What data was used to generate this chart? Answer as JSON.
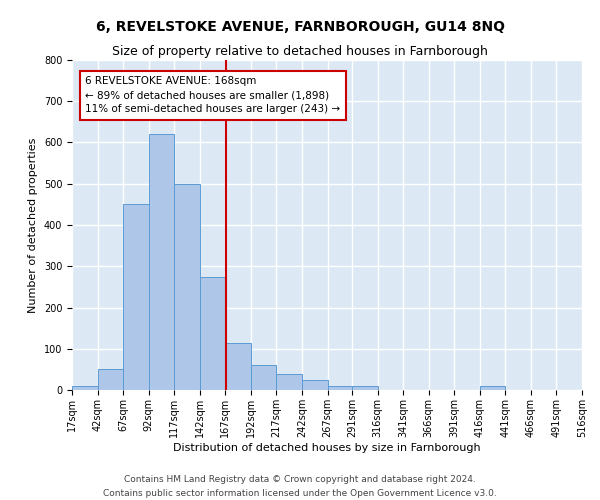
{
  "title": "6, REVELSTOKE AVENUE, FARNBOROUGH, GU14 8NQ",
  "subtitle": "Size of property relative to detached houses in Farnborough",
  "xlabel": "Distribution of detached houses by size in Farnborough",
  "ylabel": "Number of detached properties",
  "bin_edges": [
    17,
    42,
    67,
    92,
    117,
    142,
    167,
    192,
    217,
    242,
    267,
    291,
    316,
    341,
    366,
    391,
    416,
    441,
    466,
    491,
    516
  ],
  "counts": [
    10,
    50,
    450,
    620,
    500,
    275,
    115,
    60,
    40,
    25,
    10,
    10,
    0,
    0,
    0,
    0,
    10,
    0,
    0,
    0
  ],
  "bar_color": "#aec6e8",
  "bar_edge_color": "#5b9bd5",
  "property_size": 168,
  "annotation_text": "6 REVELSTOKE AVENUE: 168sqm\n← 89% of detached houses are smaller (1,898)\n11% of semi-detached houses are larger (243) →",
  "annotation_box_color": "#ffffff",
  "annotation_box_edge_color": "#cc0000",
  "vline_color": "#cc0000",
  "ylim": [
    0,
    800
  ],
  "yticks": [
    0,
    100,
    200,
    300,
    400,
    500,
    600,
    700,
    800
  ],
  "background_color": "#dce9f5",
  "grid_color": "#ffffff",
  "footer_line1": "Contains HM Land Registry data © Crown copyright and database right 2024.",
  "footer_line2": "Contains public sector information licensed under the Open Government Licence v3.0.",
  "title_fontsize": 10,
  "subtitle_fontsize": 9,
  "axis_label_fontsize": 8,
  "tick_fontsize": 7,
  "annotation_fontsize": 7.5,
  "footer_fontsize": 6.5
}
